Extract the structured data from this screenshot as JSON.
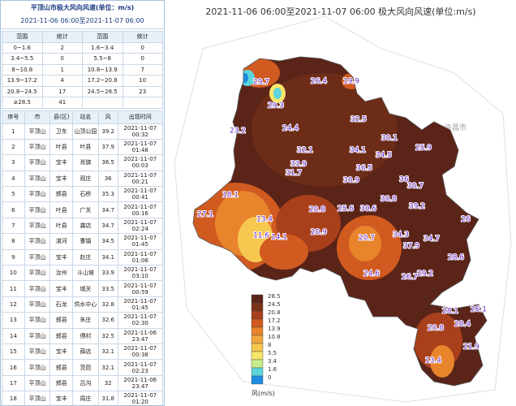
{
  "left_panel": {
    "title": "平顶山市极大风向风速(单位：m/s)",
    "subtitle": "2021-11-06 06:00至2021-11-07 06:00",
    "stats": {
      "headers": [
        "范围",
        "统计",
        "范围",
        "统计"
      ],
      "rows": [
        [
          "0~1.6",
          2,
          "1.6~3.4",
          0
        ],
        [
          "3.4~5.5",
          0,
          "5.5~8",
          0
        ],
        [
          "8~10.8",
          1,
          "10.8~13.9",
          7
        ],
        [
          "13.9~17.2",
          4,
          "17.2~20.8",
          10
        ],
        [
          "20.8~24.5",
          17,
          "24.5~28.5",
          23
        ],
        [
          "≥28.5",
          41
        ]
      ]
    },
    "ranking": {
      "headers": [
        "序号",
        "市",
        "县(区)",
        "站名",
        "风",
        "出现时间"
      ],
      "rows": [
        [
          1,
          "平顶山",
          "卫东",
          "山顶公园",
          39.2,
          "2021-11-07 00:32"
        ],
        [
          2,
          "平顶山",
          "叶县",
          "叶县",
          37.9,
          "2021-11-07 01:48"
        ],
        [
          3,
          "平顶山",
          "宝丰",
          "肖旗",
          36.5,
          "2021-11-07 00:03"
        ],
        [
          4,
          "平顶山",
          "宝丰",
          "观庄",
          36,
          "2021-11-07 00:21"
        ],
        [
          5,
          "平顶山",
          "郏县",
          "石桥",
          35.3,
          "2021-11-07 00:41"
        ],
        [
          6,
          "平顶山",
          "叶县",
          "广关",
          34.7,
          "2021-11-07 00:16"
        ],
        [
          7,
          "平顶山",
          "叶县",
          "龚店",
          34.7,
          "2021-11-07 02:24"
        ],
        [
          8,
          "平顶山",
          "湛河",
          "曹镇",
          34.5,
          "2021-11-07 01:45"
        ],
        [
          9,
          "平顶山",
          "宝丰",
          "赵庄",
          34.1,
          "2021-11-07 01:06"
        ],
        [
          10,
          "平顶山",
          "汝州",
          "斗山坡",
          33.9,
          "2021-11-07 03:10"
        ],
        [
          11,
          "平顶山",
          "宝丰",
          "城关",
          33.5,
          "2021-11-07 00:59"
        ],
        [
          12,
          "平顶山",
          "石龙",
          "供水中心",
          32.8,
          "2021-11-07 01:45"
        ],
        [
          13,
          "平顶山",
          "郏县",
          "朱庄",
          32.6,
          "2021-11-07 02:30"
        ],
        [
          14,
          "平顶山",
          "郏县",
          "傅村",
          32.5,
          "2021-11-06 23:47"
        ],
        [
          15,
          "平顶山",
          "宝丰",
          "薛店",
          32.1,
          "2021-11-07 00:38"
        ],
        [
          16,
          "平顶山",
          "郏县",
          "茨芭",
          32.1,
          "2021-11-07 02:23"
        ],
        [
          17,
          "平顶山",
          "郏县",
          "吕沟",
          32,
          "2021-11-06 23:47"
        ],
        [
          18,
          "平顶山",
          "宝丰",
          "周庄",
          31.8,
          "2021-11-07 01:20"
        ]
      ]
    }
  },
  "map": {
    "title": "2021-11-06 06:00至2021-11-07 06:00 极大风向风速(单位:m/s)",
    "neighbor": "许昌市",
    "legend": {
      "title": "风(m/s)",
      "levels": [
        {
          "value": 28.5,
          "color": "#5a2418"
        },
        {
          "value": 24.5,
          "color": "#7a3218"
        },
        {
          "value": 20.8,
          "color": "#a8401c"
        },
        {
          "value": 17.2,
          "color": "#d05a20"
        },
        {
          "value": 13.9,
          "color": "#e8842c"
        },
        {
          "value": 10.8,
          "color": "#f0a83c"
        },
        {
          "value": 8,
          "color": "#f6c850"
        },
        {
          "value": 5.5,
          "color": "#f6e66a"
        },
        {
          "value": 3.4,
          "color": "#c8ec8c"
        },
        {
          "value": 1.6,
          "color": "#5cd4dc"
        },
        {
          "value": 0,
          "color": "#1e8ce0"
        }
      ]
    },
    "points": [
      29.7,
      26.4,
      19.9,
      29.3,
      23.2,
      24.4,
      32.5,
      30.1,
      32.1,
      34.1,
      34.5,
      25.9,
      33.9,
      31.7,
      30.9,
      36.5,
      36,
      30.7,
      18.1,
      30.8,
      39.2,
      27.1,
      13.4,
      20.8,
      25.6,
      30.6,
      11.6,
      14.1,
      20.9,
      20.7,
      34.3,
      37.9,
      34.7,
      26,
      28.6,
      24.6,
      26.7,
      29.2,
      28.1,
      26.1,
      20.8,
      20.4,
      21.9,
      13.4
    ]
  }
}
